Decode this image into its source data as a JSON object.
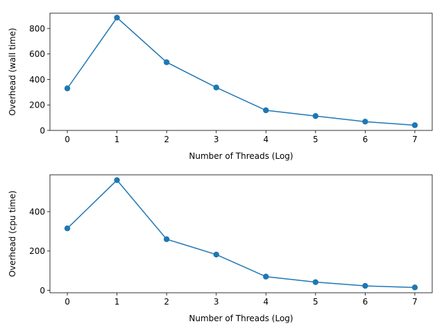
{
  "chart_data": [
    {
      "type": "line",
      "xlabel": "Number of Threads (Log)",
      "ylabel": "Overhead (wall time)",
      "x": [
        0,
        1,
        2,
        3,
        4,
        5,
        6,
        7
      ],
      "series": [
        {
          "values": [
            330,
            885,
            535,
            337,
            158,
            113,
            69,
            41
          ]
        }
      ],
      "xticks": [
        0,
        1,
        2,
        3,
        4,
        5,
        6,
        7
      ],
      "yticks": [
        0,
        200,
        400,
        600,
        800
      ],
      "xlim": [
        -0.35,
        7.35
      ],
      "ylim": [
        0,
        920
      ],
      "grid": false,
      "marker": "circle",
      "color": "#1f77b4"
    },
    {
      "type": "line",
      "xlabel": "Number of Threads (Log)",
      "ylabel": "Overhead (cpu time)",
      "x": [
        0,
        1,
        2,
        3,
        4,
        5,
        6,
        7
      ],
      "series": [
        {
          "values": [
            315,
            560,
            260,
            182,
            70,
            42,
            23,
            15
          ]
        }
      ],
      "xticks": [
        0,
        1,
        2,
        3,
        4,
        5,
        6,
        7
      ],
      "yticks": [
        0,
        200,
        400
      ],
      "xlim": [
        -0.35,
        7.35
      ],
      "ylim": [
        -12,
        587
      ],
      "grid": false,
      "marker": "circle",
      "color": "#1f77b4"
    }
  ]
}
